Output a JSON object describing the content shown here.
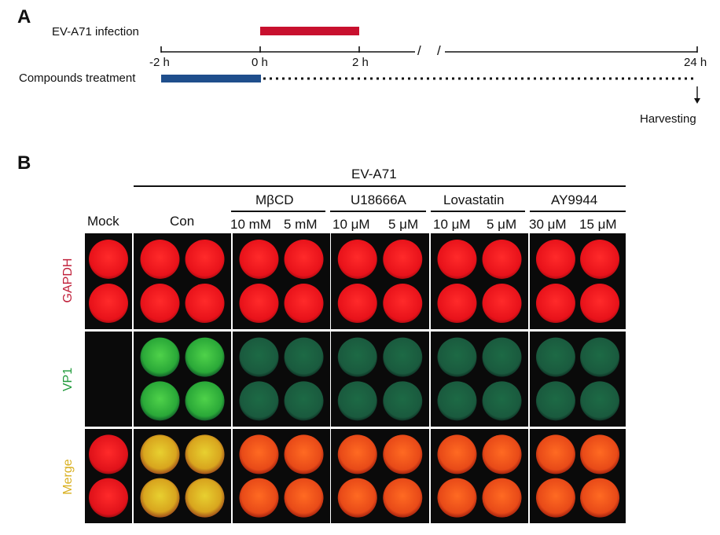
{
  "panel_a": {
    "letter": "A",
    "infection_label": "EV-A71 infection",
    "treatment_label": "Compounds treatment",
    "ticks": [
      "-2 h",
      "0 h",
      "2 h",
      "24 h"
    ],
    "break_mark": "/",
    "harvest_label": "Harvesting",
    "colors": {
      "infection_bar": "#c8102e",
      "treatment_bar": "#1f4e8c"
    }
  },
  "panel_b": {
    "letter": "B",
    "virus_label": "EV-A71",
    "mock_label": "Mock",
    "con_label": "Con",
    "groups": [
      {
        "name": "MβCD",
        "doses": [
          "10 mM",
          "5 mM"
        ]
      },
      {
        "name": "U18666A",
        "doses": [
          "10 μM",
          "5 μM"
        ]
      },
      {
        "name": "Lovastatin",
        "doses": [
          "10 μM",
          "5 μM"
        ]
      },
      {
        "name": "AY9944",
        "doses": [
          "30 μM",
          "15 μM"
        ]
      }
    ],
    "channels": [
      {
        "name": "GAPDH",
        "color": "#c0203a"
      },
      {
        "name": "VP1",
        "color": "#1f9a3a"
      },
      {
        "name": "Merge",
        "color": "#d9b020"
      }
    ],
    "vp1_intensity": {
      "mock": 0,
      "con": 1.0,
      "groups": [
        0.45,
        0.5,
        0.45,
        0.5
      ]
    }
  }
}
